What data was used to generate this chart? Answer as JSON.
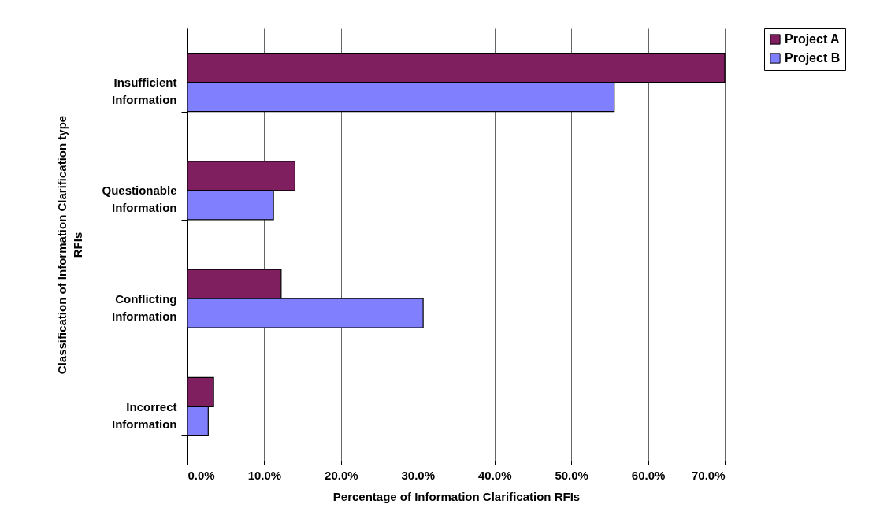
{
  "chart_data": {
    "type": "bar",
    "orientation": "horizontal",
    "xlabel": "Percentage of Information Clarification RFIs",
    "ylabel": "Classification of Information Clarification type RFIs",
    "categories": [
      "Insufficient Information",
      "Questionable Information",
      "Conflicting Information",
      "Incorrect Information"
    ],
    "series": [
      {
        "name": "Project A",
        "color": "#7f1f5f",
        "values": [
          70.0,
          14.0,
          12.2,
          3.4
        ]
      },
      {
        "name": "Project B",
        "color": "#8080ff",
        "values": [
          55.6,
          11.2,
          30.7,
          2.7
        ]
      }
    ],
    "xlim": [
      0,
      70
    ],
    "xticks": [
      {
        "value": 0,
        "label": "0.0%"
      },
      {
        "value": 10,
        "label": "10.0%"
      },
      {
        "value": 20,
        "label": "20.0%"
      },
      {
        "value": 30,
        "label": "30.0%"
      },
      {
        "value": 40,
        "label": "40.0%"
      },
      {
        "value": 50,
        "label": "50.0%"
      },
      {
        "value": 60,
        "label": "60.0%"
      },
      {
        "value": 70,
        "label": "70.0%"
      }
    ],
    "grid": "x",
    "legend": "right"
  }
}
